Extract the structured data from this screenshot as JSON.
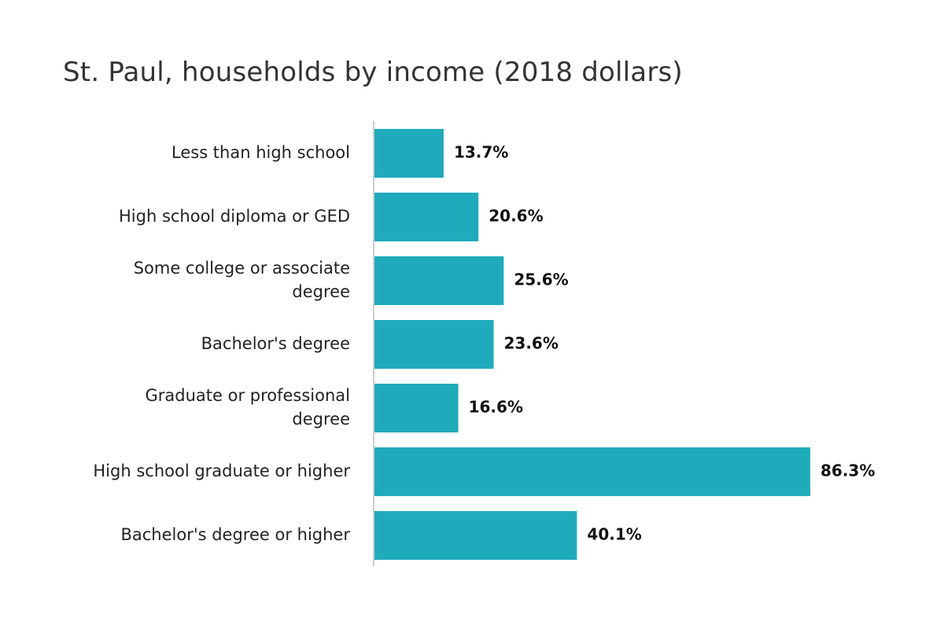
{
  "chart_data": {
    "type": "bar",
    "orientation": "horizontal",
    "title": "St. Paul, households by income (2018 dollars)",
    "categories": [
      [
        "Less than high school"
      ],
      [
        "High school diploma or GED"
      ],
      [
        "Some college or associate",
        "degree"
      ],
      [
        "Bachelor's degree"
      ],
      [
        "Graduate or professional",
        "degree"
      ],
      [
        "High school graduate or higher"
      ],
      [
        "Bachelor's degree or higher"
      ]
    ],
    "values": [
      13.7,
      20.6,
      25.6,
      23.6,
      16.6,
      86.3,
      40.1
    ],
    "value_labels": [
      "13.7%",
      "20.6%",
      "25.6%",
      "23.6%",
      "16.6%",
      "86.3%",
      "40.1%"
    ],
    "xlim": [
      0,
      86.3
    ],
    "grid": false,
    "legend": "none",
    "bar_color": "#20abbc",
    "axis_color": "#cccccc"
  }
}
